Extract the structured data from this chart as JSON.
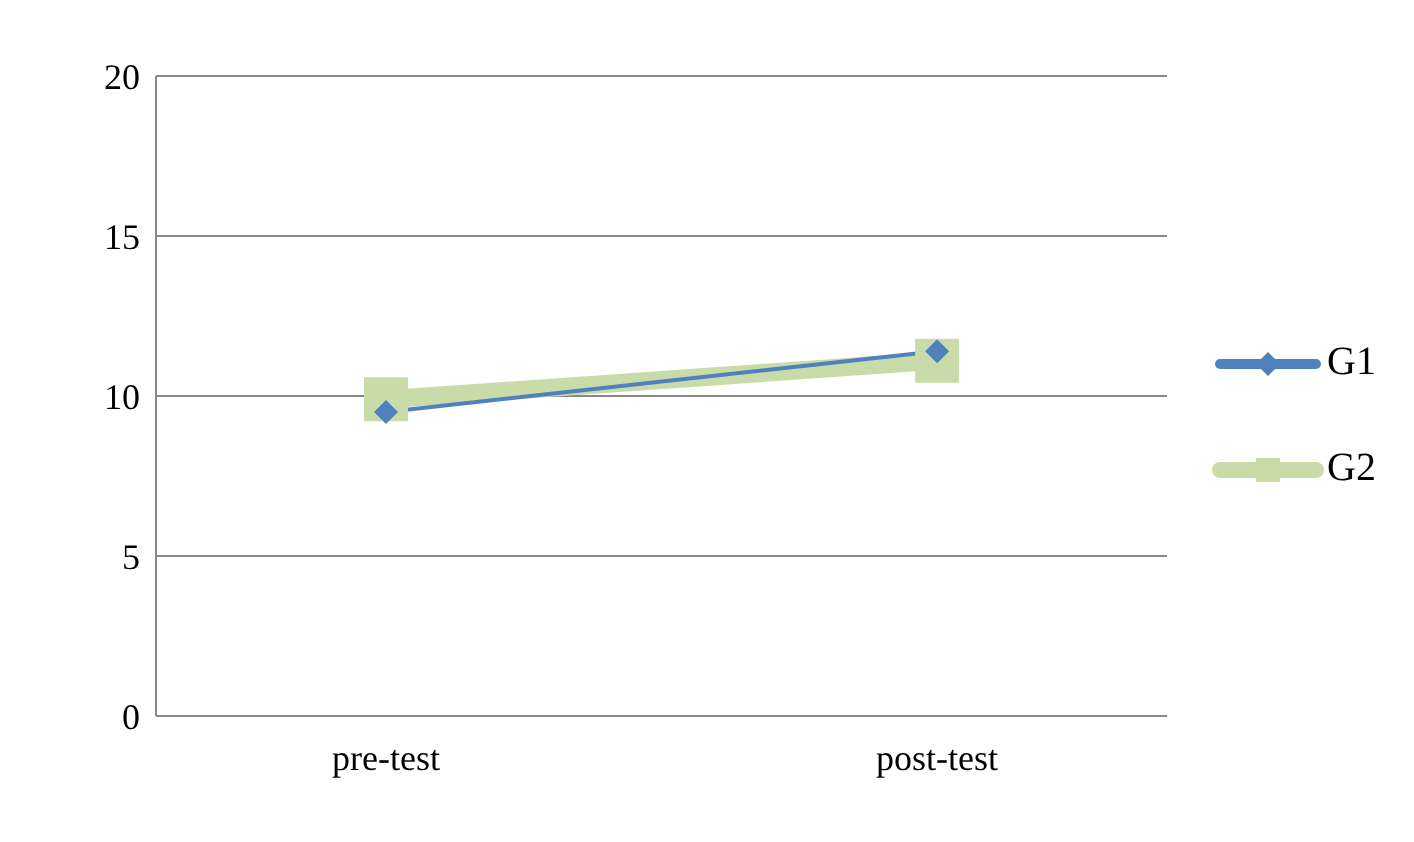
{
  "chart_data": {
    "type": "line",
    "categories": [
      "pre-test",
      "post-test"
    ],
    "series": [
      {
        "name": "G1",
        "color": "#4f81bd",
        "values": [
          9.5,
          11.4
        ],
        "marker": "diamond"
      },
      {
        "name": "G2",
        "color": "#c9dba8",
        "values": [
          9.9,
          11.1
        ],
        "marker": "square"
      }
    ],
    "ylim": [
      0,
      20
    ],
    "yticks": [
      0,
      5,
      10,
      15,
      20
    ],
    "grid": "y",
    "legend": "right"
  }
}
